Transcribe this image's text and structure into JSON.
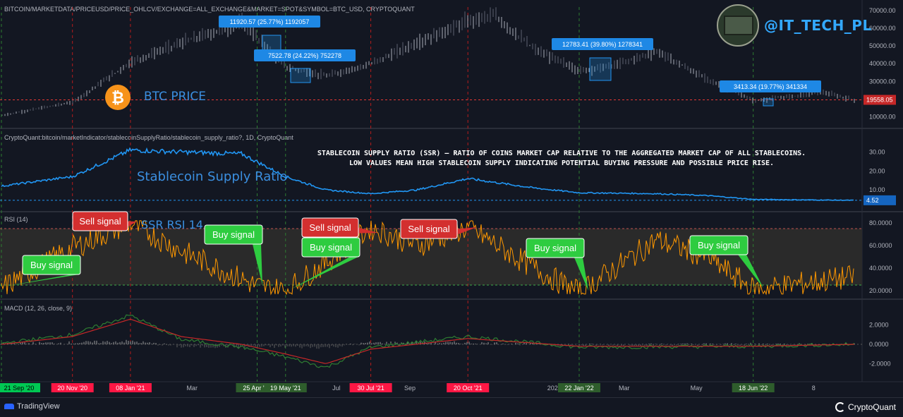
{
  "header": {
    "price_pane_title": "BITCOIN/MARKETDATA/PRICEUSD/PRICE_OHLCV/EXCHANGE=ALL_EXCHANGE&MARKET=SPOT&SYMBOL=BTC_USD, CRYPTOQUANT",
    "ssr_pane_title": "CryptoQuant:bitcoin/marketIndicator/stablecoinSupplyRatio/stablecoin_supply_ratio?, 1D, CryptoQuant",
    "rsi_pane_title": "RSI (14)",
    "macd_pane_title": "MACD (12, 26, close, 9)"
  },
  "overlay": {
    "handle": "@IT_TECH_PL",
    "btc_label": "BTC PRICE",
    "ssr_label": "Stablecoin Supply Ratio",
    "rsi_label": "SSR RSI 14",
    "annotation_line1": "STABLECOIN SUPPLY RATIO (SSR) – RATIO OF COINS MARKET CAP RELATIVE TO THE AGGREGATED MARKET CAP OF ALL STABLECOINS.",
    "annotation_line2": "LOW VALUES MEAN HIGH STABLECOIN SUPPLY INDICATING POTENTIAL BUYING PRESSURE AND POSSIBLE PRICE RISE."
  },
  "footer": {
    "left_brand": "TradingView",
    "right_brand": "CryptoQuant"
  },
  "colors": {
    "background": "#131722",
    "ssr_line": "#2196f3",
    "rsi_line": "#ff9800",
    "macd_line": "#2e7d32",
    "signal_line": "#c62828",
    "buy": "#2ecc40",
    "sell": "#d32f2f",
    "measure_box": "#1e88e5",
    "handle": "#33a9ff"
  },
  "chart_data": [
    {
      "type": "line",
      "name": "price",
      "series": [
        {
          "name": "BTC USD",
          "x": [
            "2020-09-21",
            "2020-11-20",
            "2021-01-08",
            "2021-02-20",
            "2021-04-12",
            "2021-05-19",
            "2021-06-22",
            "2021-07-30",
            "2021-09-07",
            "2021-10-20",
            "2021-11-10",
            "2021-12-15",
            "2022-01-22",
            "2022-02-20",
            "2022-03-28",
            "2022-05-10",
            "2022-06-18",
            "2022-07-25",
            "2022-08-14",
            "2022-09-10"
          ],
          "values": [
            10800,
            18300,
            41000,
            52000,
            63000,
            38000,
            33000,
            40000,
            52000,
            64000,
            67500,
            48000,
            36000,
            39000,
            47000,
            31000,
            19000,
            22000,
            24000,
            19558
          ]
        }
      ],
      "yticks": [
        "70000.00",
        "60000.00",
        "50000.00",
        "40000.00",
        "30000.00",
        "20000.00",
        "10000.00"
      ],
      "ylim": [
        5000,
        72000
      ],
      "last_value": "19558.05",
      "measurements": [
        {
          "text": "11920.57 (25.77%) 1192057"
        },
        {
          "text": "7522.78 (24.22%) 752278"
        },
        {
          "text": "12783.41 (39.80%) 1278341"
        },
        {
          "text": "3413.34 (19.77%) 341334"
        }
      ]
    },
    {
      "type": "line",
      "name": "ssr",
      "series": [
        {
          "name": "Stablecoin Supply Ratio",
          "x": [
            "2020-09-21",
            "2020-11-20",
            "2021-01-08",
            "2021-02-20",
            "2021-04-12",
            "2021-05-19",
            "2021-06-22",
            "2021-07-30",
            "2021-09-07",
            "2021-10-20",
            "2021-12-15",
            "2022-01-22",
            "2022-03-28",
            "2022-05-10",
            "2022-06-18",
            "2022-09-10"
          ],
          "values": [
            12,
            17,
            31,
            30,
            29,
            17,
            10,
            8,
            10,
            16,
            11,
            8.5,
            8,
            7,
            5,
            4.52
          ]
        }
      ],
      "yticks": [
        "30.00",
        "20.00",
        "10.00"
      ],
      "ylim": [
        0,
        35
      ],
      "last_value": "4.52"
    },
    {
      "type": "line",
      "name": "rsi",
      "series": [
        {
          "name": "RSI (14)",
          "x": [
            "2020-09-21",
            "2020-11-20",
            "2021-01-08",
            "2021-02-20",
            "2021-04-25",
            "2021-05-19",
            "2021-06-22",
            "2021-07-30",
            "2021-09-07",
            "2021-10-20",
            "2021-12-15",
            "2022-01-22",
            "2022-03-28",
            "2022-05-10",
            "2022-06-18",
            "2022-09-10"
          ],
          "values": [
            22,
            58,
            80,
            55,
            24,
            20,
            45,
            76,
            60,
            76,
            40,
            18,
            65,
            50,
            21,
            32
          ]
        }
      ],
      "yticks": [
        "80.0000",
        "60.0000",
        "40.0000",
        "20.0000"
      ],
      "ylim": [
        15,
        85
      ],
      "band": [
        25,
        75
      ],
      "signals": [
        {
          "label": "Buy signal",
          "kind": "buy"
        },
        {
          "label": "Sell signal",
          "kind": "sell"
        },
        {
          "label": "Buy signal",
          "kind": "buy"
        },
        {
          "label": "Sell signal",
          "kind": "sell"
        },
        {
          "label": "Buy signal",
          "kind": "buy"
        },
        {
          "label": "Sell signal",
          "kind": "sell"
        },
        {
          "label": "Buy signal",
          "kind": "buy"
        },
        {
          "label": "Buy signal",
          "kind": "buy"
        }
      ]
    },
    {
      "type": "line",
      "name": "macd",
      "series": [
        {
          "name": "MACD",
          "x": [
            "2020-09-21",
            "2020-11-20",
            "2021-01-08",
            "2021-02-20",
            "2021-04-12",
            "2021-05-19",
            "2021-06-22",
            "2021-07-30",
            "2021-10-20",
            "2022-01-22",
            "2022-06-18",
            "2022-09-10"
          ],
          "values": [
            0.1,
            1.0,
            3.0,
            0.5,
            -0.3,
            -1.3,
            -2.4,
            -0.3,
            0.8,
            -0.3,
            -0.2,
            0.0
          ]
        },
        {
          "name": "Signal",
          "x": [
            "2020-09-21",
            "2020-11-20",
            "2021-01-08",
            "2021-02-20",
            "2021-04-12",
            "2021-05-19",
            "2021-06-22",
            "2021-07-30",
            "2021-10-20",
            "2022-01-22",
            "2022-06-18",
            "2022-09-10"
          ],
          "values": [
            0.0,
            0.8,
            2.6,
            0.8,
            0.0,
            -1.0,
            -2.0,
            -0.5,
            0.6,
            -0.2,
            -0.2,
            0.0
          ]
        }
      ],
      "yticks": [
        "2.0000",
        "0.0000",
        "-2.0000"
      ],
      "ylim": [
        -3.5,
        3.5
      ]
    }
  ],
  "date_axis": [
    {
      "label": "21 Sep '20",
      "style": "buy"
    },
    {
      "label": "20 Nov '20",
      "style": "sell"
    },
    {
      "label": "08 Jan '21",
      "style": "sell"
    },
    {
      "label": "Mar",
      "style": "plain"
    },
    {
      "label": "25 Apr '21",
      "style": "buy-dark"
    },
    {
      "label": "19 May '21",
      "style": "buy-dark"
    },
    {
      "label": "Jul",
      "style": "plain"
    },
    {
      "label": "30 Jul '21",
      "style": "sell"
    },
    {
      "label": "Sep",
      "style": "plain"
    },
    {
      "label": "20 Oct '21",
      "style": "sell"
    },
    {
      "label": "2022",
      "style": "plain"
    },
    {
      "label": "22 Jan '22",
      "style": "buy-dark"
    },
    {
      "label": "Mar",
      "style": "plain"
    },
    {
      "label": "May",
      "style": "plain"
    },
    {
      "label": "18 Jun '22",
      "style": "buy-dark"
    },
    {
      "label": "8",
      "style": "plain"
    }
  ]
}
